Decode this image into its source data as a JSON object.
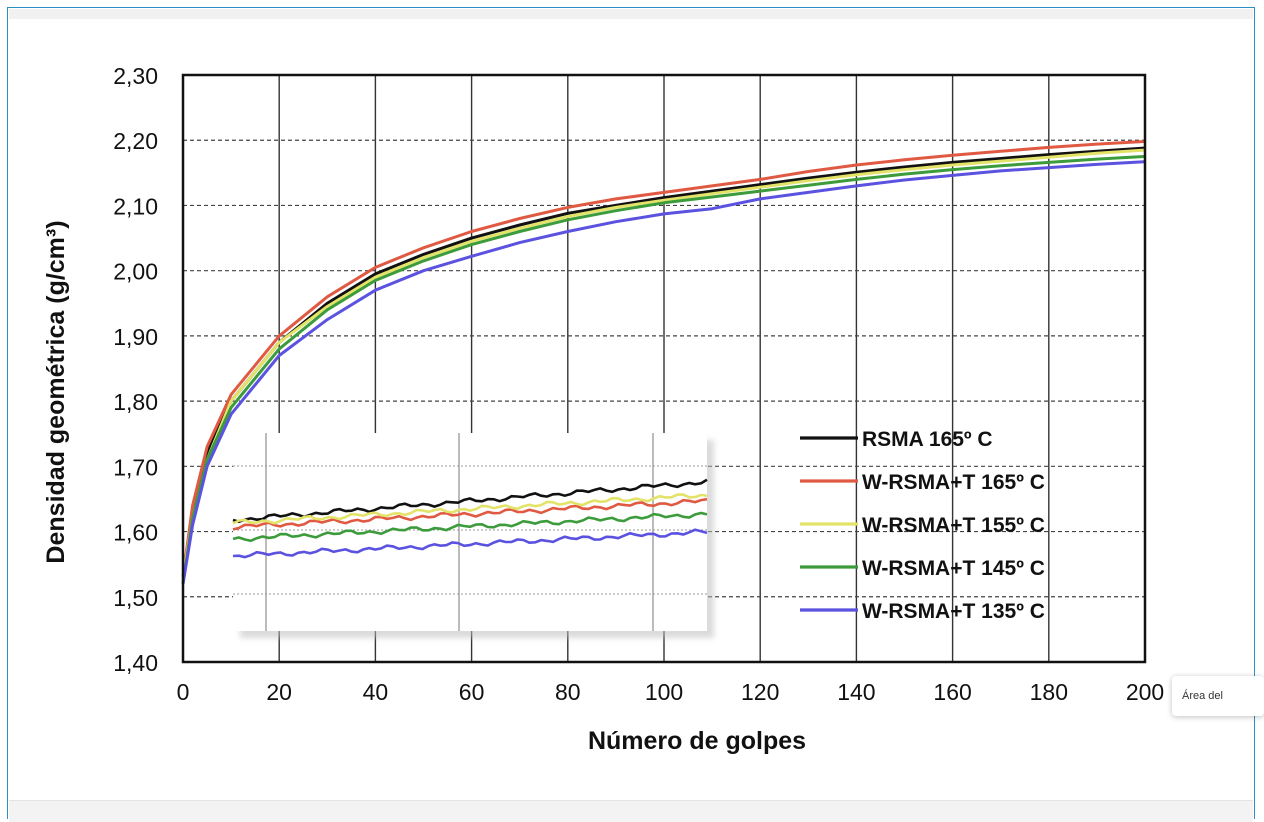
{
  "chart_data": {
    "type": "line",
    "ylabel": "Densidad geométrica (g/cm³)",
    "xlabel": "Número de golpes",
    "xlim": [
      0,
      200
    ],
    "ylim": [
      1.4,
      2.3
    ],
    "xticks": [
      0,
      20,
      40,
      60,
      80,
      100,
      120,
      140,
      160,
      180,
      200
    ],
    "xtick_labels": [
      "0",
      "20",
      "40",
      "60",
      "80",
      "100",
      "120",
      "140",
      "160",
      "180",
      "200"
    ],
    "yticks": [
      1.4,
      1.5,
      1.6,
      1.7,
      1.8,
      1.9,
      2.0,
      2.1,
      2.2,
      2.3
    ],
    "ytick_labels": [
      "1,40",
      "1,50",
      "1,60",
      "1,70",
      "1,80",
      "1,90",
      "2,00",
      "2,10",
      "2,20",
      "2,30"
    ],
    "grid": true,
    "legend_position": "lower-right",
    "x": [
      0,
      2,
      5,
      10,
      20,
      30,
      40,
      50,
      60,
      70,
      80,
      90,
      100,
      110,
      120,
      130,
      140,
      150,
      160,
      170,
      180,
      190,
      200
    ],
    "series": [
      {
        "name": "RSMA 165º C",
        "color": "#111111",
        "values": [
          1.53,
          1.63,
          1.72,
          1.8,
          1.89,
          1.95,
          1.995,
          2.025,
          2.05,
          2.07,
          2.088,
          2.1,
          2.112,
          2.122,
          2.132,
          2.142,
          2.151,
          2.159,
          2.166,
          2.172,
          2.178,
          2.183,
          2.188
        ]
      },
      {
        "name": "W-RSMA+T 165º C",
        "color": "#e05a43",
        "values": [
          1.53,
          1.64,
          1.73,
          1.81,
          1.9,
          1.96,
          2.005,
          2.035,
          2.06,
          2.08,
          2.097,
          2.11,
          2.12,
          2.13,
          2.14,
          2.152,
          2.162,
          2.17,
          2.177,
          2.183,
          2.189,
          2.194,
          2.198
        ]
      },
      {
        "name": "W-RSMA+T 155º C",
        "color": "#e3e36a",
        "values": [
          1.53,
          1.62,
          1.71,
          1.8,
          1.89,
          1.945,
          1.99,
          2.02,
          2.045,
          2.065,
          2.083,
          2.097,
          2.108,
          2.118,
          2.128,
          2.138,
          2.147,
          2.155,
          2.162,
          2.168,
          2.174,
          2.18,
          2.185
        ]
      },
      {
        "name": "W-RSMA+T 145º C",
        "color": "#3c9c3c",
        "values": [
          1.52,
          1.62,
          1.71,
          1.79,
          1.88,
          1.94,
          1.985,
          2.015,
          2.04,
          2.06,
          2.078,
          2.092,
          2.104,
          2.113,
          2.122,
          2.131,
          2.14,
          2.148,
          2.155,
          2.161,
          2.166,
          2.171,
          2.175
        ]
      },
      {
        "name": "W-RSMA+T 135º C",
        "color": "#5b52e0",
        "values": [
          1.52,
          1.61,
          1.7,
          1.78,
          1.87,
          1.925,
          1.97,
          2.0,
          2.022,
          2.043,
          2.06,
          2.075,
          2.087,
          2.095,
          2.11,
          2.12,
          2.13,
          2.139,
          2.146,
          2.153,
          2.158,
          2.163,
          2.167
        ]
      }
    ]
  },
  "tooltip": {
    "text": "Área del"
  }
}
